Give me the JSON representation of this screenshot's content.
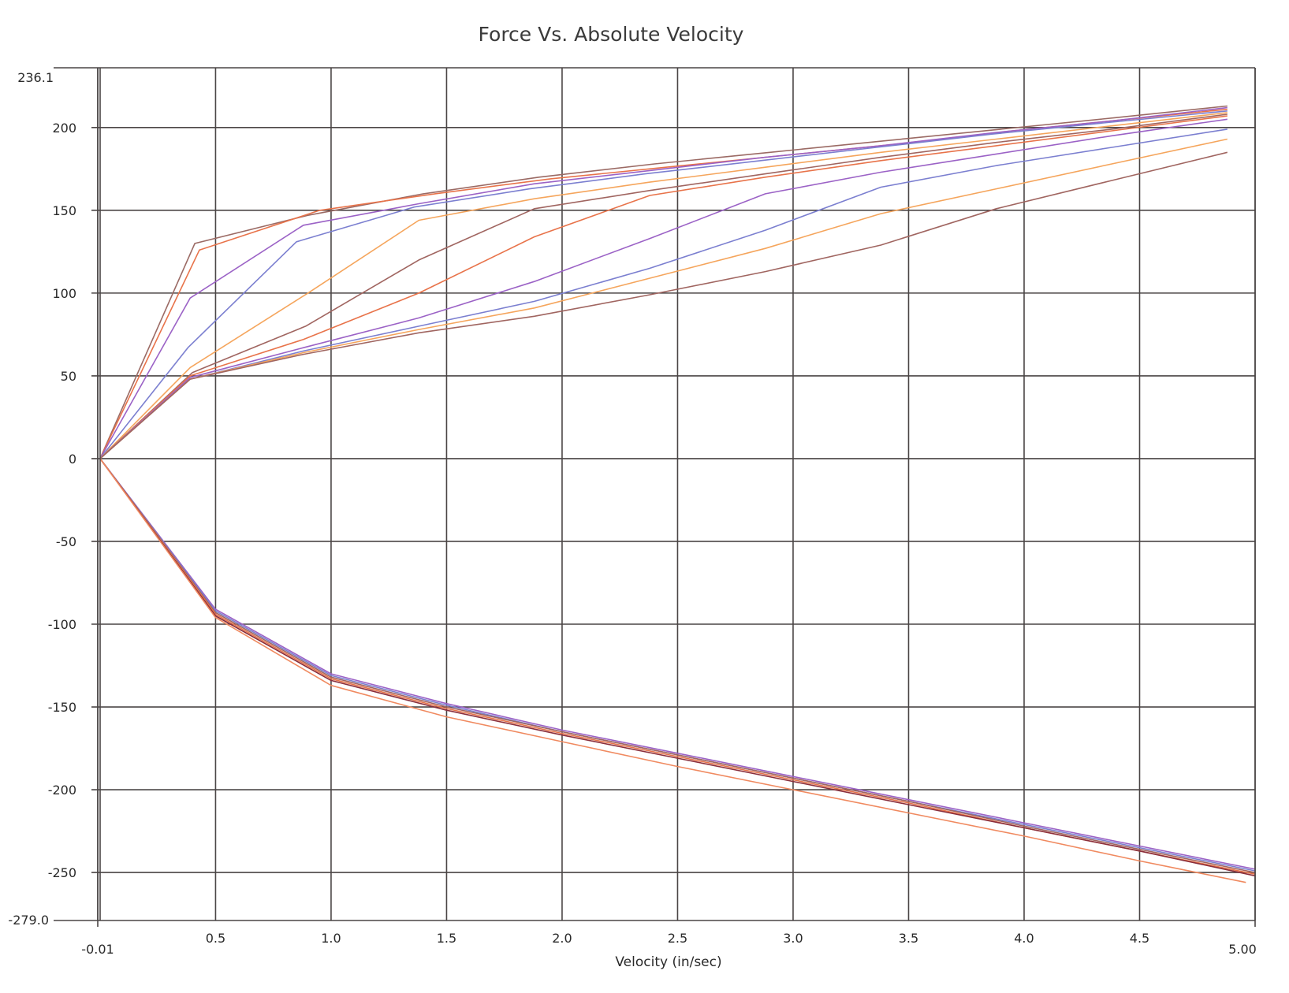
{
  "chart_data": {
    "type": "line",
    "title": "Force Vs. Absolute Velocity",
    "xlabel": "Velocity (in/sec)",
    "ylabel": "",
    "xlim": [
      -0.01,
      5.0
    ],
    "ylim": [
      -279.0,
      236.1
    ],
    "x_ticks": [
      -0.01,
      0.5,
      1.0,
      1.5,
      2.0,
      2.5,
      3.0,
      3.5,
      4.0,
      4.5,
      5.0
    ],
    "x_tick_labels": [
      "-0.01",
      "0.5",
      "1.0",
      "1.5",
      "2.0",
      "2.5",
      "3.0",
      "3.5",
      "4.0",
      "4.5",
      "5.00"
    ],
    "y_ticks": [
      -279.0,
      -250,
      -200,
      -150,
      -100,
      -50,
      0,
      50,
      100,
      150,
      200,
      236.1
    ],
    "y_tick_labels": [
      "-279.0",
      "-250",
      "-200",
      "-150",
      "-100",
      "-50",
      "0",
      "50",
      "100",
      "150",
      "200",
      "236.1"
    ],
    "grid": true,
    "legend": "none",
    "series": [
      {
        "color": "#9b6a64",
        "points": [
          [
            0.0,
            0
          ],
          [
            0.41,
            130
          ],
          [
            0.9,
            147
          ],
          [
            1.4,
            160
          ],
          [
            1.9,
            170
          ],
          [
            2.4,
            178
          ],
          [
            2.9,
            185
          ],
          [
            3.4,
            192
          ],
          [
            3.9,
            199
          ],
          [
            4.4,
            206
          ],
          [
            4.88,
            213
          ]
        ]
      },
      {
        "color": "#e8734a",
        "points": [
          [
            0.0,
            0
          ],
          [
            0.43,
            126
          ],
          [
            0.95,
            150
          ],
          [
            1.45,
            160
          ],
          [
            1.95,
            169
          ],
          [
            2.45,
            176
          ],
          [
            2.95,
            183
          ],
          [
            3.45,
            190
          ],
          [
            3.95,
            198
          ],
          [
            4.45,
            205
          ],
          [
            4.88,
            211
          ]
        ]
      },
      {
        "color": "#9b62c6",
        "points": [
          [
            0.0,
            0
          ],
          [
            0.39,
            97
          ],
          [
            0.88,
            141
          ],
          [
            1.38,
            154
          ],
          [
            1.88,
            166
          ],
          [
            2.38,
            174
          ],
          [
            2.88,
            182
          ],
          [
            3.38,
            189
          ],
          [
            3.88,
            197
          ],
          [
            4.38,
            204
          ],
          [
            4.88,
            212
          ]
        ]
      },
      {
        "color": "#7b7fd0",
        "points": [
          [
            0.0,
            0
          ],
          [
            0.38,
            67
          ],
          [
            0.85,
            131
          ],
          [
            1.36,
            152
          ],
          [
            1.86,
            163
          ],
          [
            2.36,
            172
          ],
          [
            2.86,
            180
          ],
          [
            3.36,
            188
          ],
          [
            3.86,
            196
          ],
          [
            4.36,
            203
          ],
          [
            4.88,
            210
          ]
        ]
      },
      {
        "color": "#f5a55c",
        "points": [
          [
            0.0,
            0
          ],
          [
            0.39,
            55
          ],
          [
            0.9,
            100
          ],
          [
            1.38,
            144
          ],
          [
            1.88,
            157
          ],
          [
            2.38,
            167
          ],
          [
            2.88,
            176
          ],
          [
            3.38,
            185
          ],
          [
            3.88,
            193
          ],
          [
            4.38,
            201
          ],
          [
            4.88,
            209
          ]
        ]
      },
      {
        "color": "#a06560",
        "points": [
          [
            0.0,
            0
          ],
          [
            0.4,
            52
          ],
          [
            0.89,
            80
          ],
          [
            1.38,
            120
          ],
          [
            1.88,
            151
          ],
          [
            2.38,
            162
          ],
          [
            2.88,
            172
          ],
          [
            3.38,
            182
          ],
          [
            3.88,
            191
          ],
          [
            4.38,
            199
          ],
          [
            4.88,
            208
          ]
        ]
      },
      {
        "color": "#e8734a",
        "points": [
          [
            0.0,
            0
          ],
          [
            0.39,
            50
          ],
          [
            0.88,
            72
          ],
          [
            1.38,
            100
          ],
          [
            1.88,
            134
          ],
          [
            2.38,
            159
          ],
          [
            2.88,
            170
          ],
          [
            3.38,
            180
          ],
          [
            3.88,
            189
          ],
          [
            4.38,
            198
          ],
          [
            4.88,
            207
          ]
        ]
      },
      {
        "color": "#9b62c6",
        "points": [
          [
            0.0,
            0
          ],
          [
            0.39,
            49
          ],
          [
            0.88,
            67
          ],
          [
            1.38,
            85
          ],
          [
            1.88,
            107
          ],
          [
            2.38,
            133
          ],
          [
            2.88,
            160
          ],
          [
            3.38,
            173
          ],
          [
            3.88,
            184
          ],
          [
            4.38,
            195
          ],
          [
            4.88,
            205
          ]
        ]
      },
      {
        "color": "#7b7fd0",
        "points": [
          [
            0.0,
            0
          ],
          [
            0.39,
            48
          ],
          [
            0.88,
            65
          ],
          [
            1.38,
            80
          ],
          [
            1.88,
            95
          ],
          [
            2.38,
            115
          ],
          [
            2.88,
            138
          ],
          [
            3.38,
            164
          ],
          [
            3.88,
            177
          ],
          [
            4.38,
            188
          ],
          [
            4.88,
            199
          ]
        ]
      },
      {
        "color": "#f5a55c",
        "points": [
          [
            0.0,
            0
          ],
          [
            0.39,
            48
          ],
          [
            0.88,
            64
          ],
          [
            1.38,
            78
          ],
          [
            1.88,
            91
          ],
          [
            2.38,
            109
          ],
          [
            2.88,
            127
          ],
          [
            3.38,
            148
          ],
          [
            3.88,
            163
          ],
          [
            4.38,
            178
          ],
          [
            4.88,
            193
          ]
        ]
      },
      {
        "color": "#a06560",
        "points": [
          [
            0.0,
            0
          ],
          [
            0.39,
            48
          ],
          [
            0.88,
            63
          ],
          [
            1.38,
            76
          ],
          [
            1.88,
            86
          ],
          [
            2.38,
            99
          ],
          [
            2.88,
            113
          ],
          [
            3.38,
            129
          ],
          [
            3.88,
            151
          ],
          [
            4.38,
            168
          ],
          [
            4.88,
            185
          ]
        ]
      },
      {
        "color": "#9b62c6",
        "points": [
          [
            0.0,
            0
          ],
          [
            0.5,
            -91
          ],
          [
            1.0,
            -130
          ],
          [
            1.5,
            -148
          ],
          [
            2.0,
            -164
          ],
          [
            2.5,
            -178
          ],
          [
            3.0,
            -192
          ],
          [
            3.5,
            -206
          ],
          [
            4.0,
            -220
          ],
          [
            4.5,
            -234
          ],
          [
            5.0,
            -248
          ]
        ]
      },
      {
        "color": "#7b7fd0",
        "points": [
          [
            0.0,
            0
          ],
          [
            0.5,
            -92
          ],
          [
            1.0,
            -131
          ],
          [
            1.5,
            -149
          ],
          [
            2.0,
            -165
          ],
          [
            2.5,
            -179
          ],
          [
            3.0,
            -193
          ],
          [
            3.5,
            -207
          ],
          [
            4.0,
            -221
          ],
          [
            4.5,
            -235
          ],
          [
            5.0,
            -249
          ]
        ]
      },
      {
        "color": "#a06560",
        "points": [
          [
            0.0,
            0
          ],
          [
            0.5,
            -93
          ],
          [
            1.0,
            -132
          ],
          [
            1.5,
            -150
          ],
          [
            2.0,
            -165
          ],
          [
            2.5,
            -179
          ],
          [
            3.0,
            -193
          ],
          [
            3.5,
            -207
          ],
          [
            4.0,
            -222
          ],
          [
            4.5,
            -236
          ],
          [
            5.0,
            -250
          ]
        ]
      },
      {
        "color": "#e8734a",
        "points": [
          [
            0.0,
            0
          ],
          [
            0.5,
            -94
          ],
          [
            1.0,
            -133
          ],
          [
            1.5,
            -151
          ],
          [
            2.0,
            -166
          ],
          [
            2.5,
            -180
          ],
          [
            3.0,
            -194
          ],
          [
            3.5,
            -208
          ],
          [
            4.0,
            -223
          ],
          [
            4.5,
            -237
          ],
          [
            5.0,
            -251
          ]
        ]
      },
      {
        "color": "#8a2f3c",
        "points": [
          [
            0.0,
            0
          ],
          [
            0.5,
            -95
          ],
          [
            1.0,
            -134
          ],
          [
            1.5,
            -152
          ],
          [
            2.0,
            -167
          ],
          [
            2.5,
            -181
          ],
          [
            3.0,
            -195
          ],
          [
            3.5,
            -209
          ],
          [
            4.0,
            -223
          ],
          [
            4.5,
            -237
          ],
          [
            5.0,
            -252
          ]
        ]
      },
      {
        "color": "#f08a60",
        "points": [
          [
            0.0,
            0
          ],
          [
            0.5,
            -96
          ],
          [
            1.0,
            -137
          ],
          [
            1.5,
            -156
          ],
          [
            2.0,
            -171
          ],
          [
            2.5,
            -186
          ],
          [
            3.0,
            -200
          ],
          [
            3.5,
            -214
          ],
          [
            4.0,
            -228
          ],
          [
            4.5,
            -243
          ],
          [
            4.96,
            -256
          ]
        ]
      }
    ]
  }
}
